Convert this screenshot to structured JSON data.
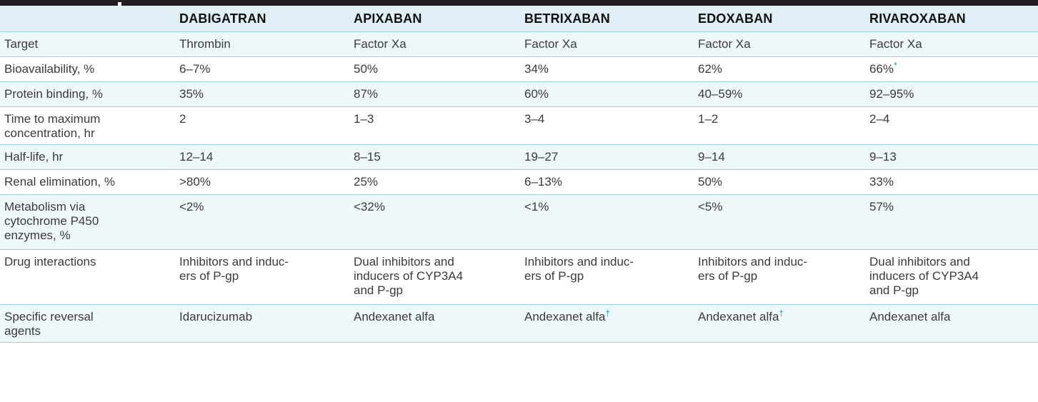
{
  "header": {
    "columns": [
      "",
      "DABIGATRAN",
      "APIXABAN",
      "BETRIXABAN",
      "EDOXABAN",
      "RIVAROXABAN"
    ]
  },
  "rows": [
    {
      "label": "Target",
      "cells": [
        "Thrombin",
        "Factor Xa",
        "Factor Xa",
        "Factor Xa",
        "Factor Xa"
      ]
    },
    {
      "label": "Bioavailability, %",
      "cells": [
        "6–7%",
        "50%",
        "34%",
        "62%",
        "66%"
      ]
    },
    {
      "label": "Protein binding, %",
      "cells": [
        "35%",
        "87%",
        "60%",
        "40–59%",
        "92–95%"
      ]
    },
    {
      "label": "Time to maximum\n  concentration, hr",
      "cells": [
        "2",
        "1–3",
        "3–4",
        "1–2",
        "2–4"
      ]
    },
    {
      "label": "Half-life, hr",
      "cells": [
        "12–14",
        "8–15",
        "19–27",
        "9–14",
        "9–13"
      ]
    },
    {
      "label": "Renal elimination, %",
      "cells": [
        ">80%",
        "25%",
        "6–13%",
        "50%",
        "33%"
      ]
    },
    {
      "label": "Metabolism via\n  cytochrome P450\n  enzymes, %",
      "cells": [
        "<2%",
        "<32%",
        "<1%",
        "<5%",
        "57%"
      ]
    },
    {
      "label": "Drug interactions",
      "cells": [
        "Inhibitors and induc-\n  ers of P-gp",
        "Dual inhibitors and\n  inducers of CYP3A4\n  and P-gp",
        "Inhibitors and induc-\n  ers of P-gp",
        "Inhibitors and induc-\n  ers of P-gp",
        "Dual inhibitors and\n  inducers of CYP3A4\n  and P-gp"
      ]
    },
    {
      "label": "Specific reversal\n  agents",
      "cells": [
        "Idarucizumab",
        "Andexanet alfa",
        "Andexanet alfa",
        "Andexanet alfa",
        "Andexanet alfa"
      ]
    }
  ],
  "footnote_marks": {
    "asterisk": "*",
    "dagger": "†"
  },
  "colors": {
    "header_bg": "#dfeff5",
    "row_alt_bg": "#eef7fa",
    "rule": "#9fd1df",
    "mark": "#2a9fbf",
    "top_bar": "#231f20"
  }
}
